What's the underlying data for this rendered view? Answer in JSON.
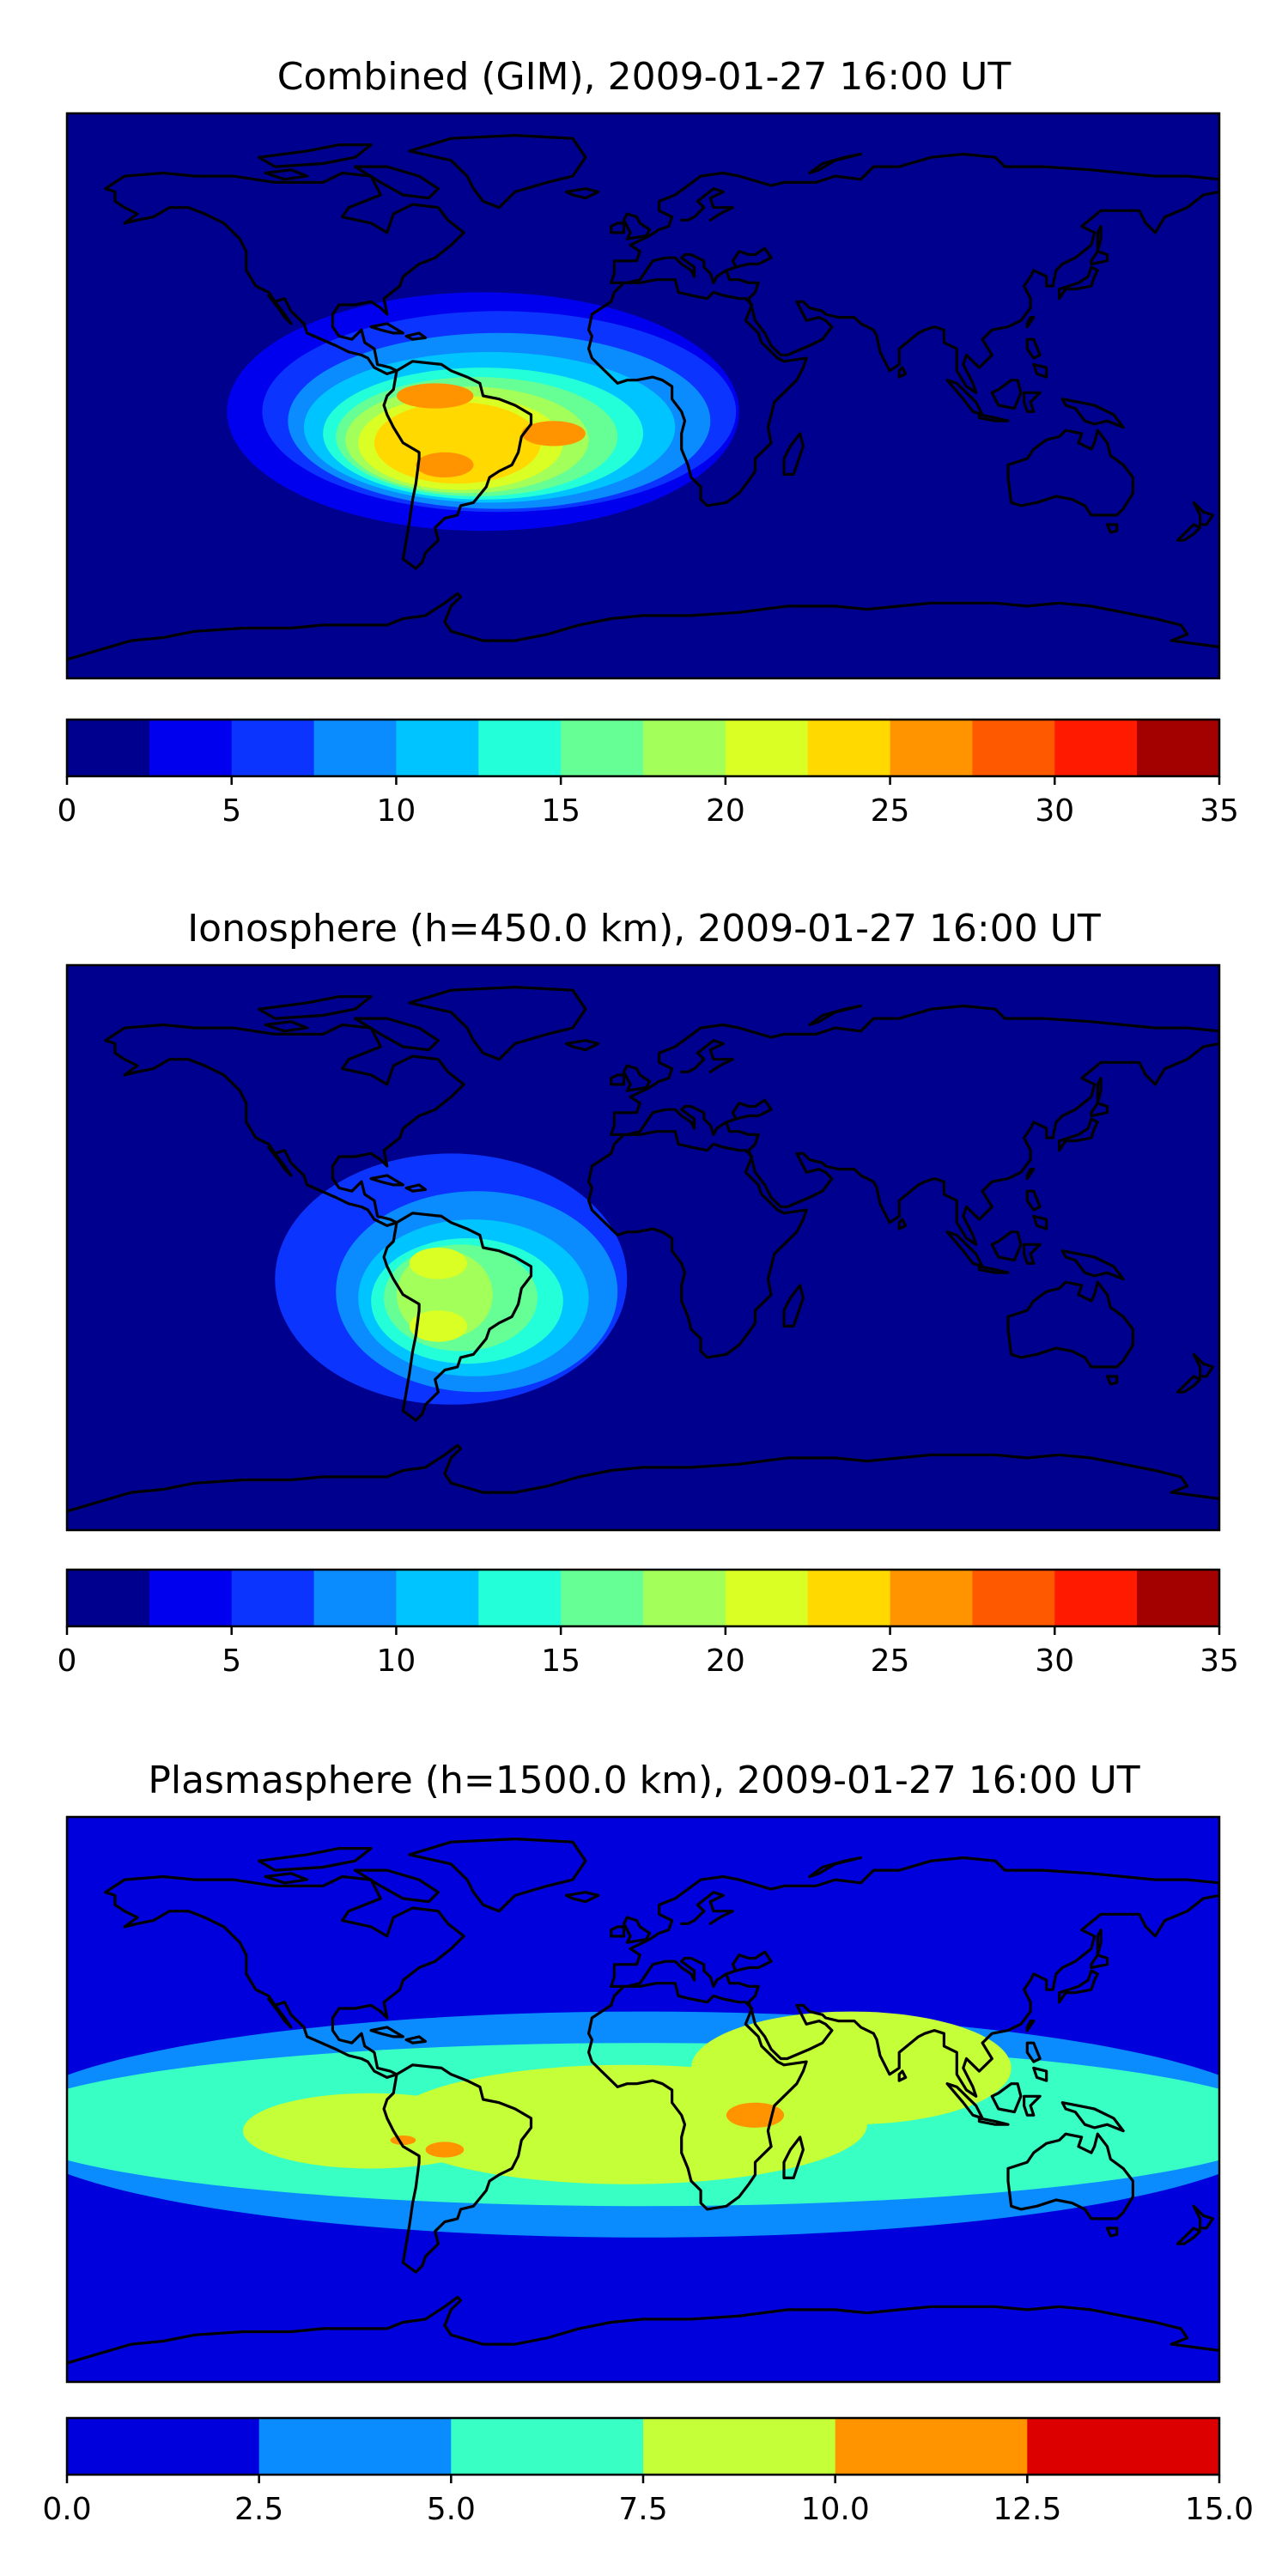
{
  "chart_data": [
    {
      "type": "heatmap",
      "title": "Combined (GIM), 2009-01-27 16:00 UT",
      "colorbar": {
        "levels": [
          0,
          2.5,
          5,
          7.5,
          10,
          12.5,
          15,
          17.5,
          20,
          22.5,
          25,
          27.5,
          30,
          32.5,
          35
        ],
        "ticks": [
          "0",
          "5",
          "10",
          "15",
          "20",
          "25",
          "30",
          "35"
        ],
        "colors": [
          "#00008f",
          "#0000ee",
          "#0b34ff",
          "#0a8cff",
          "#00c4ff",
          "#23ffd9",
          "#66ff95",
          "#a3ff5a",
          "#d9ff24",
          "#ffd900",
          "#ff9400",
          "#ff5900",
          "#ff1a00",
          "#a30000"
        ]
      },
      "blobs": [
        {
          "lon": -50,
          "lat": -5,
          "rx": 80,
          "ry": 38,
          "level": 1
        },
        {
          "lon": -45,
          "lat": -5,
          "rx": 74,
          "ry": 32,
          "level": 2
        },
        {
          "lon": -45,
          "lat": -8,
          "rx": 66,
          "ry": 28,
          "level": 3
        },
        {
          "lon": -48,
          "lat": -10,
          "rx": 58,
          "ry": 24,
          "level": 4
        },
        {
          "lon": -50,
          "lat": -12,
          "rx": 50,
          "ry": 21,
          "level": 5
        },
        {
          "lon": -52,
          "lat": -13,
          "rx": 44,
          "ry": 19,
          "level": 6
        },
        {
          "lon": -55,
          "lat": -14,
          "rx": 38,
          "ry": 17,
          "level": 7
        },
        {
          "lon": -57,
          "lat": -15,
          "rx": 32,
          "ry": 15,
          "level": 8
        },
        {
          "lon": -58,
          "lat": -15,
          "rx": 26,
          "ry": 13,
          "level": 9
        },
        {
          "lon": -65,
          "lat": 0,
          "rx": 12,
          "ry": 4,
          "level": 10
        },
        {
          "lon": -62,
          "lat": -22,
          "rx": 9,
          "ry": 4,
          "level": 10
        },
        {
          "lon": -28,
          "lat": -12,
          "rx": 10,
          "ry": 4,
          "level": 10
        }
      ]
    },
    {
      "type": "heatmap",
      "title": "Ionosphere  (h=450.0 km), 2009-01-27 16:00 UT",
      "colorbar": {
        "levels": [
          0,
          2.5,
          5,
          7.5,
          10,
          12.5,
          15,
          17.5,
          20,
          22.5,
          25,
          27.5,
          30,
          32.5,
          35
        ],
        "ticks": [
          "0",
          "5",
          "10",
          "15",
          "20",
          "25",
          "30",
          "35"
        ],
        "colors": [
          "#00008f",
          "#0000ee",
          "#0b34ff",
          "#0a8cff",
          "#00c4ff",
          "#23ffd9",
          "#66ff95",
          "#a3ff5a",
          "#d9ff24",
          "#ffd900",
          "#ff9400",
          "#ff5900",
          "#ff1a00",
          "#a30000"
        ]
      },
      "blobs": [
        {
          "lon": -60,
          "lat": -10,
          "rx": 55,
          "ry": 40,
          "level": 2
        },
        {
          "lon": -52,
          "lat": -14,
          "rx": 44,
          "ry": 32,
          "level": 3
        },
        {
          "lon": -53,
          "lat": -16,
          "rx": 36,
          "ry": 25,
          "level": 4
        },
        {
          "lon": -55,
          "lat": -17,
          "rx": 30,
          "ry": 20,
          "level": 5
        },
        {
          "lon": -57,
          "lat": -16,
          "rx": 24,
          "ry": 17,
          "level": 6
        },
        {
          "lon": -62,
          "lat": -15,
          "rx": 15,
          "ry": 14,
          "level": 7
        },
        {
          "lon": -64,
          "lat": -5,
          "rx": 9,
          "ry": 5,
          "level": 8
        },
        {
          "lon": -64,
          "lat": -25,
          "rx": 9,
          "ry": 5,
          "level": 8
        }
      ]
    },
    {
      "type": "heatmap",
      "title": "Plasmasphere (h=1500.0 km), 2009-01-27 16:00 UT",
      "colorbar": {
        "levels": [
          0.0,
          2.5,
          5.0,
          7.5,
          10.0,
          12.5,
          15.0
        ],
        "ticks": [
          "0.0",
          "2.5",
          "5.0",
          "7.5",
          "10.0",
          "12.5",
          "15.0"
        ],
        "colors": [
          "#0000dc",
          "#0a8cff",
          "#38ffc4",
          "#c4ff38",
          "#ff9400",
          "#dc0000"
        ]
      },
      "blobs": [
        {
          "lon": 0,
          "lat": -8,
          "rx": 200,
          "ry": 36,
          "level": 1
        },
        {
          "lon": 0,
          "lat": -8,
          "rx": 200,
          "ry": 26,
          "level": 2
        },
        {
          "lon": -5,
          "lat": -8,
          "rx": 75,
          "ry": 19,
          "level": 3
        },
        {
          "lon": 65,
          "lat": 10,
          "rx": 50,
          "ry": 18,
          "level": 3
        },
        {
          "lon": -85,
          "lat": -10,
          "rx": 40,
          "ry": 12,
          "level": 3
        },
        {
          "lon": 35,
          "lat": -5,
          "rx": 9,
          "ry": 4,
          "level": 4
        },
        {
          "lon": -62,
          "lat": -16,
          "rx": 6,
          "ry": 2.5,
          "level": 4
        },
        {
          "lon": -75,
          "lat": -13,
          "rx": 4,
          "ry": 1.5,
          "level": 4
        }
      ]
    }
  ]
}
